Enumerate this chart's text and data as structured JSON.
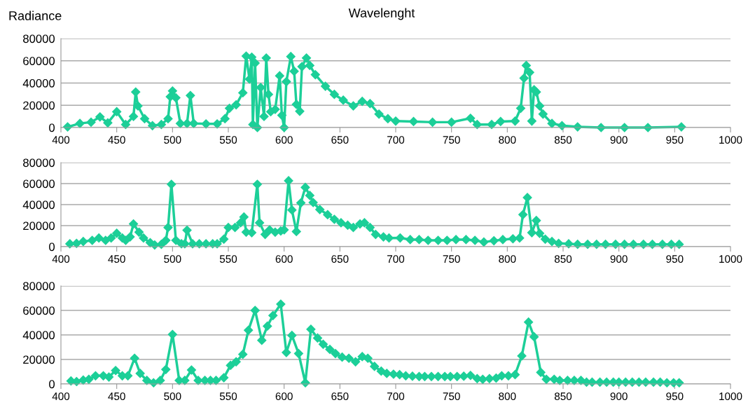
{
  "chart_data": [
    {
      "type": "line",
      "xlabel": "Wavelenght",
      "ylabel": "Radiance",
      "xlim": [
        400,
        1000
      ],
      "ylim": [
        0,
        80000
      ],
      "xticks": [
        400,
        450,
        500,
        550,
        600,
        650,
        700,
        750,
        800,
        850,
        900,
        950,
        1000
      ],
      "yticks": [
        0,
        20000,
        40000,
        60000,
        80000
      ],
      "grid": "y",
      "marker": "diamond",
      "line_style": "solid",
      "series": [
        {
          "color": "#1ccf98",
          "x": [
            406,
            417,
            427,
            435,
            442,
            450,
            458,
            465,
            467,
            469,
            475,
            482,
            490,
            496,
            498,
            500,
            503,
            507,
            513,
            516,
            519,
            530,
            540,
            547,
            551,
            557,
            563,
            566,
            569,
            571,
            572,
            574,
            576,
            579,
            582,
            584,
            586,
            588,
            592,
            596,
            598,
            600,
            602,
            606,
            609,
            611,
            614,
            616,
            620,
            623,
            628,
            637,
            645,
            653,
            662,
            670,
            677,
            685,
            693,
            700,
            716,
            733,
            750,
            767,
            773,
            786,
            794,
            807,
            812,
            815,
            817,
            820,
            822,
            824,
            826,
            829,
            832,
            840,
            849,
            863,
            884,
            905,
            926,
            956
          ],
          "values": [
            600,
            3700,
            4800,
            9600,
            4200,
            14200,
            2700,
            10000,
            31900,
            19400,
            7900,
            1700,
            2700,
            7900,
            27700,
            32900,
            26700,
            3700,
            3700,
            28800,
            3700,
            3300,
            3300,
            7900,
            17300,
            20400,
            31200,
            64200,
            43500,
            63300,
            2700,
            57900,
            0,
            36000,
            10000,
            62500,
            29800,
            14200,
            16300,
            46500,
            11000,
            0,
            41200,
            63800,
            50600,
            20800,
            14600,
            54800,
            62500,
            55800,
            47500,
            37100,
            29800,
            24600,
            19400,
            23500,
            21500,
            12100,
            7900,
            5800,
            5400,
            4800,
            4800,
            8300,
            2700,
            2700,
            5400,
            5800,
            17300,
            44400,
            55800,
            49600,
            5800,
            34000,
            31900,
            19400,
            12100,
            3700,
            1700,
            600,
            0,
            0,
            0,
            600
          ]
        }
      ]
    },
    {
      "type": "line",
      "xlim": [
        400,
        1000
      ],
      "ylim": [
        0,
        80000
      ],
      "xticks": [
        400,
        450,
        500,
        550,
        600,
        650,
        700,
        750,
        800,
        850,
        900,
        950,
        1000
      ],
      "yticks": [
        0,
        20000,
        40000,
        60000,
        80000
      ],
      "grid": "y",
      "marker": "diamond",
      "line_style": "solid",
      "series": [
        {
          "color": "#1ccf98",
          "x": [
            408,
            414,
            420,
            428,
            434,
            440,
            445,
            450,
            455,
            458,
            462,
            465,
            470,
            474,
            480,
            484,
            490,
            494,
            496,
            499,
            503,
            508,
            511,
            513,
            518,
            524,
            530,
            536,
            540,
            546,
            550,
            556,
            561,
            564,
            566,
            571,
            576,
            578,
            583,
            587,
            592,
            597,
            600,
            604,
            607,
            611,
            615,
            619,
            623,
            626,
            632,
            639,
            645,
            651,
            657,
            662,
            668,
            672,
            677,
            682,
            689,
            694,
            704,
            713,
            721,
            729,
            738,
            746,
            754,
            763,
            771,
            779,
            788,
            796,
            805,
            811,
            814,
            818,
            822,
            826,
            829,
            834,
            840,
            846,
            855,
            863,
            872,
            880,
            888,
            897,
            905,
            913,
            922,
            930,
            939,
            947,
            954
          ],
          "values": [
            2700,
            3100,
            4900,
            6000,
            8200,
            6000,
            8200,
            12700,
            8200,
            6000,
            9300,
            21600,
            13800,
            8200,
            3800,
            1600,
            2200,
            6000,
            18200,
            59300,
            6000,
            2700,
            2700,
            15600,
            2700,
            2700,
            2700,
            2700,
            2700,
            7100,
            18200,
            18200,
            22700,
            28200,
            13800,
            13300,
            59300,
            22700,
            11600,
            16000,
            13800,
            14900,
            16000,
            62700,
            34900,
            14400,
            41600,
            56400,
            48700,
            42000,
            35300,
            30400,
            26000,
            22700,
            20400,
            18200,
            21600,
            22700,
            18200,
            11600,
            9300,
            8200,
            8300,
            6700,
            6700,
            6000,
            6000,
            6000,
            6700,
            6700,
            6000,
            4400,
            5600,
            6700,
            7500,
            8200,
            30500,
            46700,
            13300,
            24900,
            12600,
            7100,
            4900,
            3100,
            2700,
            2200,
            2200,
            2200,
            2200,
            2200,
            2200,
            2200,
            2200,
            2200,
            2200,
            2200,
            2200
          ]
        }
      ]
    },
    {
      "type": "line",
      "xlim": [
        400,
        1000
      ],
      "ylim": [
        0,
        80000
      ],
      "xticks": [
        400,
        450,
        500,
        550,
        600,
        650,
        700,
        750,
        800,
        850,
        900,
        950,
        1000
      ],
      "yticks": [
        0,
        20000,
        40000,
        60000,
        80000
      ],
      "grid": "y",
      "marker": "diamond",
      "line_style": "solid",
      "series": [
        {
          "color": "#1ccf98",
          "x": [
            409,
            414,
            420,
            425,
            431,
            438,
            443,
            449,
            455,
            460,
            466,
            471,
            477,
            483,
            489,
            494,
            500,
            506,
            511,
            517,
            523,
            529,
            534,
            539,
            546,
            552,
            557,
            563,
            568,
            574,
            580,
            585,
            590,
            597,
            602,
            607,
            613,
            619,
            624,
            630,
            635,
            641,
            646,
            652,
            658,
            664,
            670,
            675,
            681,
            687,
            692,
            698,
            703.5,
            709,
            715,
            721,
            726,
            732,
            738,
            744,
            749,
            755,
            761,
            767,
            773,
            778,
            784,
            790,
            795,
            801,
            807,
            813,
            819,
            824,
            830,
            835,
            842,
            847,
            854,
            860,
            866,
            871,
            876,
            883,
            889,
            895,
            900,
            906,
            912,
            918,
            924,
            931,
            937,
            943,
            949,
            954
          ],
          "values": [
            2500,
            2000,
            3200,
            3800,
            6700,
            6700,
            5700,
            11000,
            6700,
            6700,
            21000,
            8600,
            2900,
            1000,
            2900,
            11800,
            40400,
            2900,
            2900,
            11400,
            2900,
            2900,
            2900,
            2900,
            5100,
            15200,
            18100,
            24200,
            43800,
            60000,
            35600,
            47200,
            55800,
            65100,
            25700,
            39600,
            24800,
            1000,
            44600,
            37500,
            32400,
            28200,
            24800,
            21900,
            21000,
            18100,
            22300,
            21000,
            14300,
            10500,
            8600,
            8000,
            7600,
            6700,
            6300,
            6100,
            6100,
            6100,
            6100,
            6100,
            6100,
            6100,
            6300,
            7000,
            4400,
            3800,
            4400,
            4800,
            6700,
            6700,
            7600,
            22900,
            50500,
            38500,
            9500,
            3800,
            3800,
            2900,
            2900,
            2900,
            2900,
            1500,
            1500,
            1500,
            1500,
            1500,
            1500,
            1500,
            1500,
            1500,
            1500,
            1500,
            1500,
            1000,
            1000,
            1000
          ]
        }
      ]
    }
  ]
}
